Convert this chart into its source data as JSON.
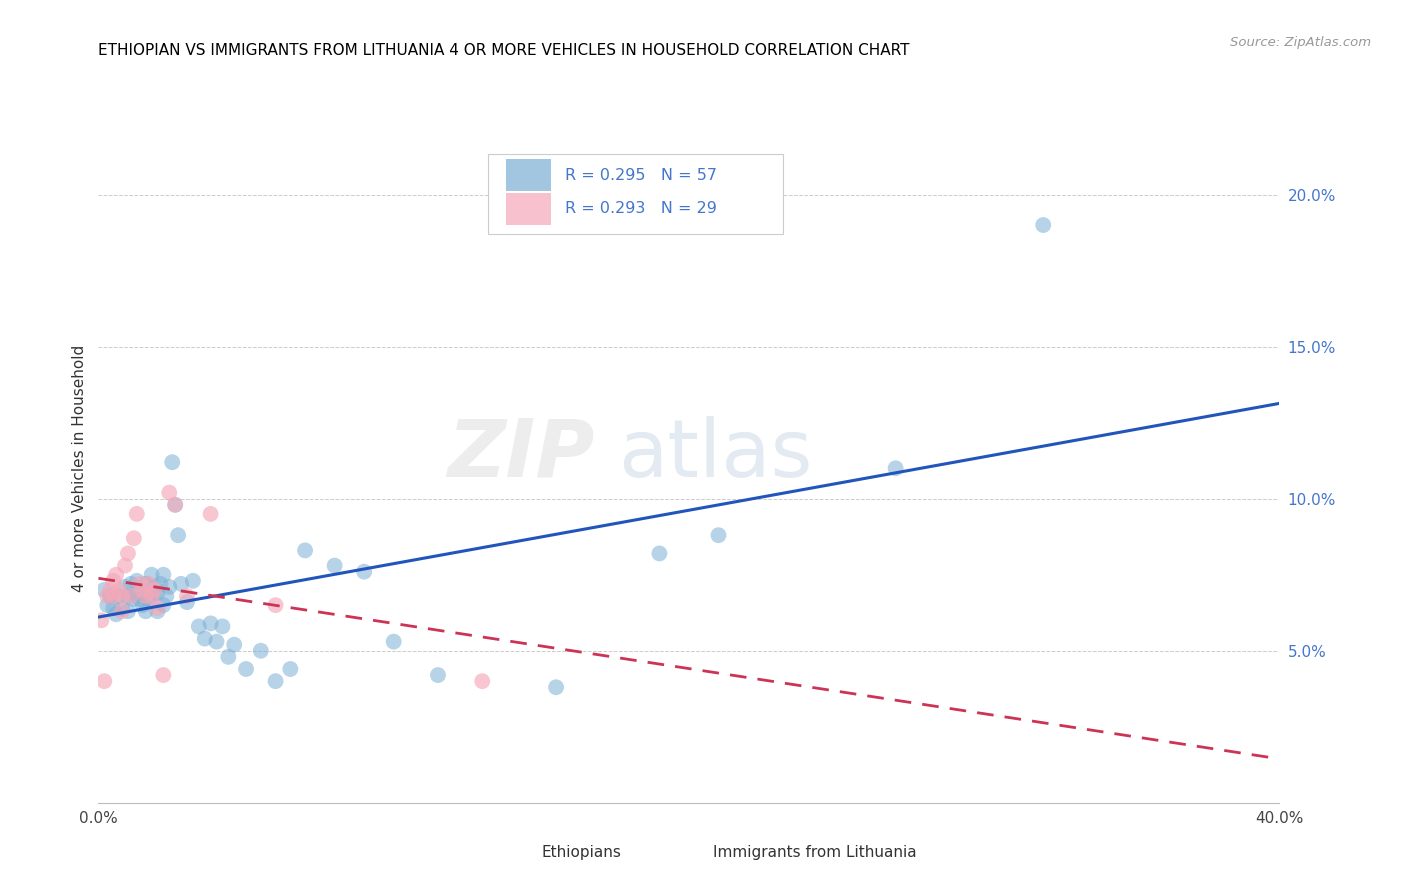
{
  "title": "ETHIOPIAN VS IMMIGRANTS FROM LITHUANIA 4 OR MORE VEHICLES IN HOUSEHOLD CORRELATION CHART",
  "source": "Source: ZipAtlas.com",
  "ylabel": "4 or more Vehicles in Household",
  "xlim": [
    0.0,
    0.4
  ],
  "ylim": [
    0.0,
    0.22
  ],
  "xticks": [
    0.0,
    0.05,
    0.1,
    0.15,
    0.2,
    0.25,
    0.3,
    0.35,
    0.4
  ],
  "yticks_right": [
    0.05,
    0.1,
    0.15,
    0.2
  ],
  "blue_color": "#7BAFD4",
  "pink_color": "#F4A8B8",
  "blue_line_color": "#2255BB",
  "pink_line_color": "#CC3355",
  "watermark_zip": "ZIP",
  "watermark_atlas": "atlas",
  "ethiopian_x": [
    0.002,
    0.003,
    0.004,
    0.005,
    0.006,
    0.007,
    0.008,
    0.009,
    0.01,
    0.01,
    0.011,
    0.012,
    0.013,
    0.013,
    0.014,
    0.015,
    0.015,
    0.016,
    0.016,
    0.017,
    0.018,
    0.018,
    0.019,
    0.02,
    0.02,
    0.021,
    0.022,
    0.022,
    0.023,
    0.024,
    0.025,
    0.026,
    0.027,
    0.028,
    0.03,
    0.032,
    0.034,
    0.036,
    0.038,
    0.04,
    0.042,
    0.044,
    0.046,
    0.05,
    0.055,
    0.06,
    0.065,
    0.07,
    0.08,
    0.09,
    0.1,
    0.115,
    0.155,
    0.19,
    0.21,
    0.27,
    0.32
  ],
  "ethiopian_y": [
    0.07,
    0.065,
    0.068,
    0.064,
    0.062,
    0.068,
    0.064,
    0.071,
    0.068,
    0.063,
    0.072,
    0.067,
    0.069,
    0.073,
    0.067,
    0.07,
    0.065,
    0.072,
    0.063,
    0.067,
    0.075,
    0.068,
    0.071,
    0.069,
    0.063,
    0.072,
    0.065,
    0.075,
    0.068,
    0.071,
    0.112,
    0.098,
    0.088,
    0.072,
    0.066,
    0.073,
    0.058,
    0.054,
    0.059,
    0.053,
    0.058,
    0.048,
    0.052,
    0.044,
    0.05,
    0.04,
    0.044,
    0.083,
    0.078,
    0.076,
    0.053,
    0.042,
    0.038,
    0.082,
    0.088,
    0.11,
    0.19
  ],
  "lithuania_x": [
    0.001,
    0.002,
    0.003,
    0.004,
    0.005,
    0.005,
    0.006,
    0.007,
    0.008,
    0.008,
    0.009,
    0.01,
    0.011,
    0.012,
    0.013,
    0.014,
    0.015,
    0.016,
    0.017,
    0.018,
    0.019,
    0.02,
    0.022,
    0.024,
    0.026,
    0.03,
    0.038,
    0.06,
    0.13
  ],
  "lithuania_y": [
    0.06,
    0.04,
    0.068,
    0.07,
    0.073,
    0.068,
    0.075,
    0.07,
    0.063,
    0.068,
    0.078,
    0.082,
    0.068,
    0.087,
    0.095,
    0.072,
    0.07,
    0.068,
    0.072,
    0.068,
    0.07,
    0.064,
    0.042,
    0.102,
    0.098,
    0.068,
    0.095,
    0.065,
    0.04
  ]
}
